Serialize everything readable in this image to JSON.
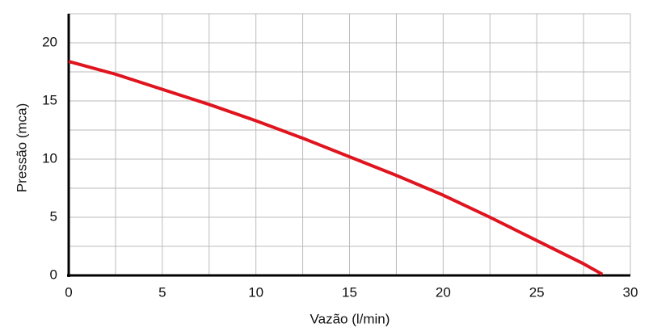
{
  "chart_data": {
    "type": "line",
    "xlabel": "Vazão  (l/min)",
    "ylabel": "Pressão (mca)",
    "x": [
      0,
      2.5,
      5,
      7.5,
      10,
      12.5,
      15,
      17.5,
      20,
      22.5,
      25,
      27.5,
      28.5
    ],
    "series": [
      {
        "color": "#e0141e",
        "values": [
          18.4,
          17.3,
          16.0,
          14.7,
          13.3,
          11.8,
          10.2,
          8.6,
          6.9,
          5.0,
          3.0,
          1.0,
          0.1
        ]
      }
    ],
    "xlim": [
      0,
      30
    ],
    "ylim": [
      0,
      22.5
    ],
    "xticks": [
      0,
      5,
      10,
      15,
      20,
      25,
      30
    ],
    "yticks": [
      0,
      5,
      10,
      15,
      20
    ],
    "xgrid": [
      2.5,
      5,
      7.5,
      10,
      12.5,
      15,
      17.5,
      20,
      22.5,
      25,
      27.5,
      30
    ],
    "ygrid": [
      2.5,
      5,
      7.5,
      10,
      12.5,
      15,
      17.5,
      20,
      22.5
    ],
    "grid": true
  }
}
